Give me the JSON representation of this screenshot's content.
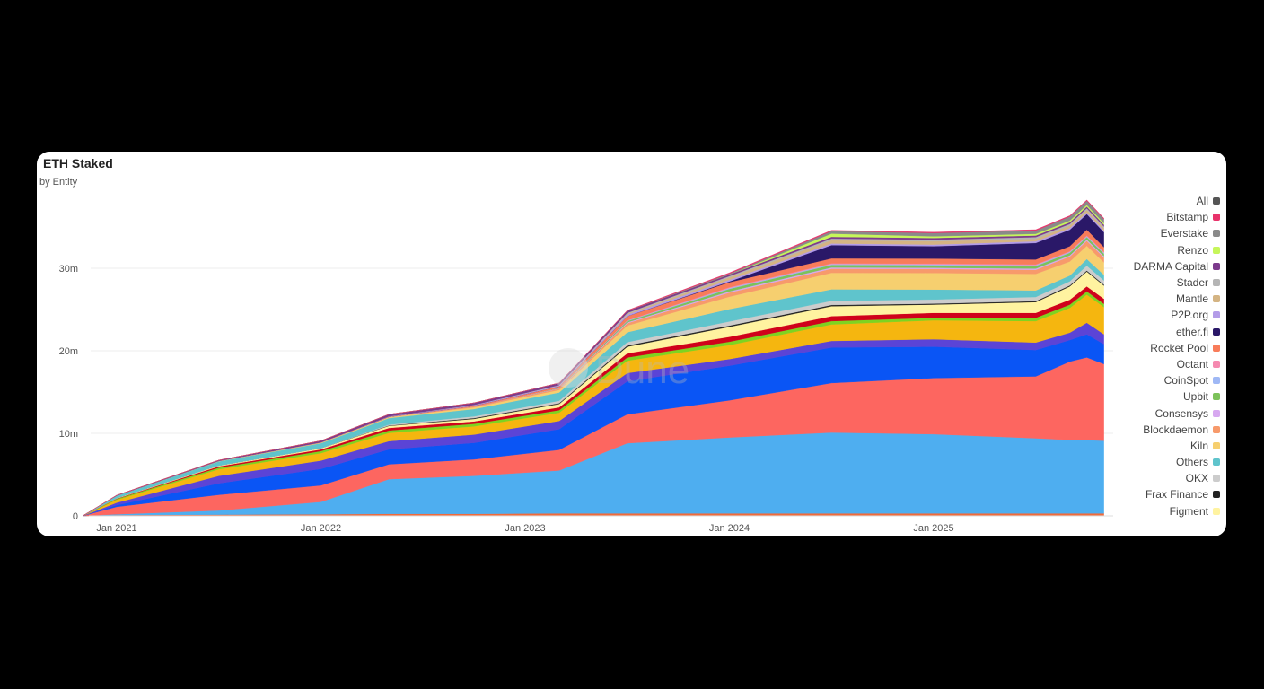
{
  "chart_data": {
    "type": "area",
    "stacked": true,
    "title": "ETH Staked",
    "subtitle": "by Entity",
    "watermark": "Dune",
    "y_ticks": [
      {
        "v": 0,
        "label": "0"
      },
      {
        "v": 10,
        "label": "10m"
      },
      {
        "v": 20,
        "label": "20m"
      },
      {
        "v": 30,
        "label": "30m"
      }
    ],
    "x_ticks": [
      {
        "v": "2021-01",
        "label": "Jan 2021"
      },
      {
        "v": "2022-01",
        "label": "Jan 2022"
      },
      {
        "v": "2023-01",
        "label": "Jan 2023"
      },
      {
        "v": "2024-01",
        "label": "Jan 2024"
      },
      {
        "v": "2025-01",
        "label": "Jan 2025"
      }
    ],
    "ylim": [
      0,
      40
    ],
    "y_unit": "million ETH",
    "grid": true,
    "legend_placement": "right",
    "x": [
      "2020-11",
      "2021-01",
      "2021-07",
      "2022-01",
      "2022-05",
      "2022-10",
      "2023-03",
      "2023-07",
      "2024-01",
      "2024-07",
      "2025-01",
      "2025-07",
      "2025-09",
      "2025-10",
      "2025-11"
    ],
    "series": [
      {
        "color": "#f06a3a",
        "values": [
          0,
          0.1,
          0.15,
          0.2,
          0.25,
          0.25,
          0.3,
          0.3,
          0.3,
          0.3,
          0.3,
          0.3,
          0.3,
          0.3,
          0.3
        ]
      },
      {
        "color": "#4eaef0",
        "values": [
          0,
          0.1,
          0.5,
          1.5,
          4.2,
          4.6,
          5.2,
          8.5,
          9.2,
          9.8,
          9.6,
          9.1,
          8.9,
          8.9,
          8.8
        ]
      },
      {
        "color": "#fd6660",
        "values": [
          0,
          0.9,
          1.9,
          2.0,
          1.8,
          2.0,
          2.5,
          3.5,
          4.5,
          6.0,
          6.8,
          7.5,
          9.5,
          10.0,
          9.3
        ]
      },
      {
        "color": "#0a55f5",
        "values": [
          0,
          0.2,
          1.4,
          2.0,
          1.8,
          2.0,
          2.5,
          4.0,
          4.2,
          4.3,
          3.8,
          3.2,
          2.6,
          2.8,
          2.4
        ]
      },
      {
        "color": "#5b44d6",
        "values": [
          0,
          0.3,
          0.9,
          1.0,
          1.0,
          1.0,
          1.0,
          1.0,
          0.8,
          0.8,
          0.9,
          0.9,
          0.9,
          1.4,
          1.2
        ]
      },
      {
        "color": "#f5b60f",
        "values": [
          0,
          0.35,
          0.8,
          0.9,
          1.0,
          1.0,
          1.0,
          1.5,
          1.7,
          2.0,
          2.3,
          2.6,
          3.0,
          3.4,
          3.3
        ]
      },
      {
        "color": "#7ed321",
        "values": [
          0,
          0.1,
          0.2,
          0.25,
          0.3,
          0.3,
          0.3,
          0.4,
          0.4,
          0.4,
          0.3,
          0.4,
          0.4,
          0.4,
          0.4
        ]
      },
      {
        "color": "#d0021b",
        "values": [
          0,
          0.05,
          0.15,
          0.2,
          0.3,
          0.3,
          0.35,
          0.5,
          0.6,
          0.6,
          0.6,
          0.6,
          0.6,
          0.6,
          0.6
        ]
      },
      {
        "name": "Figment",
        "color": "#fff3a0",
        "values": [
          0,
          0.05,
          0.1,
          0.15,
          0.25,
          0.3,
          0.4,
          0.8,
          1.2,
          1.2,
          1.0,
          1.3,
          1.6,
          1.8,
          1.6
        ]
      },
      {
        "name": "Frax Finance",
        "color": "#222222",
        "values": [
          0,
          0,
          0,
          0,
          0.05,
          0.1,
          0.1,
          0.15,
          0.15,
          0.15,
          0.12,
          0.12,
          0.12,
          0.12,
          0.12
        ]
      },
      {
        "name": "OKX",
        "color": "#cccccc",
        "values": [
          0,
          0,
          0,
          0,
          0.1,
          0.2,
          0.3,
          0.4,
          0.5,
          0.5,
          0.5,
          0.5,
          0.5,
          0.6,
          0.5
        ]
      },
      {
        "name": "Others",
        "color": "#5fc4cc",
        "values": [
          0,
          0.3,
          0.5,
          0.6,
          0.8,
          0.9,
          1.0,
          1.2,
          1.5,
          1.4,
          1.2,
          0.8,
          0.7,
          0.8,
          0.7
        ]
      },
      {
        "name": "Kiln",
        "color": "#f6cf6f",
        "values": [
          0,
          0,
          0.05,
          0.05,
          0.1,
          0.2,
          0.3,
          0.8,
          1.5,
          2.0,
          2.0,
          2.0,
          1.7,
          1.6,
          1.5
        ]
      },
      {
        "name": "Blockdaemon",
        "color": "#f79a6b",
        "values": [
          0,
          0,
          0,
          0.05,
          0.05,
          0.1,
          0.15,
          0.3,
          0.5,
          0.5,
          0.5,
          0.5,
          0.6,
          0.6,
          0.6
        ]
      },
      {
        "name": "Consensys",
        "color": "#d7a8f0",
        "values": [
          0,
          0,
          0,
          0,
          0,
          0,
          0.05,
          0.1,
          0.15,
          0.15,
          0.15,
          0.15,
          0.15,
          0.15,
          0.15
        ]
      },
      {
        "name": "Upbit",
        "color": "#7cc25a",
        "values": [
          0,
          0,
          0,
          0,
          0,
          0,
          0.05,
          0.15,
          0.3,
          0.3,
          0.3,
          0.3,
          0.3,
          0.3,
          0.3
        ]
      },
      {
        "name": "CoinSpot",
        "color": "#9fb8f5",
        "values": [
          0,
          0,
          0,
          0,
          0,
          0,
          0,
          0.05,
          0.1,
          0.1,
          0.1,
          0.1,
          0.1,
          0.1,
          0.1
        ]
      },
      {
        "name": "Octant",
        "color": "#f58ab0",
        "values": [
          0,
          0,
          0,
          0,
          0,
          0,
          0,
          0.05,
          0.1,
          0.1,
          0.1,
          0.1,
          0.1,
          0.1,
          0.1
        ]
      },
      {
        "name": "Rocket Pool",
        "color": "#f87c5a",
        "values": [
          0,
          0,
          0,
          0,
          0,
          0.1,
          0.2,
          0.5,
          0.6,
          0.6,
          0.6,
          0.6,
          0.6,
          0.7,
          0.6
        ]
      },
      {
        "name": "ether.fi",
        "color": "#2a1868",
        "values": [
          0,
          0,
          0,
          0,
          0,
          0,
          0,
          0,
          0.1,
          1.6,
          1.5,
          2.0,
          2.0,
          1.9,
          1.8
        ]
      },
      {
        "name": "P2P.org",
        "color": "#b39ce8",
        "values": [
          0,
          0,
          0,
          0,
          0.05,
          0.1,
          0.1,
          0.2,
          0.2,
          0.2,
          0.2,
          0.2,
          0.2,
          0.2,
          0.2
        ]
      },
      {
        "name": "Mantle",
        "color": "#d4b483",
        "values": [
          0,
          0,
          0,
          0,
          0,
          0,
          0,
          0.1,
          0.3,
          0.4,
          0.4,
          0.3,
          0.3,
          0.3,
          0.3
        ]
      },
      {
        "name": "Stader",
        "color": "#b5b5b5",
        "values": [
          0,
          0,
          0,
          0,
          0,
          0,
          0.05,
          0.1,
          0.15,
          0.2,
          0.2,
          0.2,
          0.2,
          0.2,
          0.2
        ]
      },
      {
        "name": "DARMA Capital",
        "color": "#7c3a8c",
        "values": [
          0,
          0.05,
          0.1,
          0.2,
          0.25,
          0.25,
          0.25,
          0.25,
          0.2,
          0.2,
          0.2,
          0.2,
          0.2,
          0.2,
          0.2
        ]
      },
      {
        "name": "Renzo",
        "color": "#c6f65a",
        "values": [
          0,
          0,
          0,
          0,
          0,
          0,
          0,
          0,
          0,
          0.4,
          0.2,
          0.2,
          0.2,
          0.2,
          0.2
        ]
      },
      {
        "name": "Everstake",
        "color": "#8a8a8a",
        "values": [
          0,
          0,
          0,
          0,
          0,
          0,
          0,
          0,
          0.1,
          0.3,
          0.4,
          0.4,
          0.5,
          0.5,
          0.5
        ]
      },
      {
        "name": "Bitstamp",
        "color": "#e8336b",
        "values": [
          0,
          0,
          0,
          0,
          0,
          0,
          0,
          0.05,
          0.1,
          0.1,
          0.1,
          0.1,
          0.1,
          0.1,
          0.1
        ]
      }
    ],
    "legend": [
      {
        "label": "All",
        "color": "#555555"
      },
      {
        "label": "Bitstamp",
        "color": "#e8336b"
      },
      {
        "label": "Everstake",
        "color": "#8a8a8a"
      },
      {
        "label": "Renzo",
        "color": "#c6f65a"
      },
      {
        "label": "DARMA Capital",
        "color": "#7c3a8c"
      },
      {
        "label": "Stader",
        "color": "#b5b5b5"
      },
      {
        "label": "Mantle",
        "color": "#d4b483"
      },
      {
        "label": "P2P.org",
        "color": "#b39ce8"
      },
      {
        "label": "ether.fi",
        "color": "#2a1868"
      },
      {
        "label": "Rocket Pool",
        "color": "#f87c5a"
      },
      {
        "label": "Octant",
        "color": "#f58ab0"
      },
      {
        "label": "CoinSpot",
        "color": "#9fb8f5"
      },
      {
        "label": "Upbit",
        "color": "#7cc25a"
      },
      {
        "label": "Consensys",
        "color": "#d7a8f0"
      },
      {
        "label": "Blockdaemon",
        "color": "#f79a6b"
      },
      {
        "label": "Kiln",
        "color": "#f6cf6f"
      },
      {
        "label": "Others",
        "color": "#5fc4cc"
      },
      {
        "label": "OKX",
        "color": "#cccccc"
      },
      {
        "label": "Frax Finance",
        "color": "#222222"
      },
      {
        "label": "Figment",
        "color": "#fff3a0"
      }
    ]
  }
}
